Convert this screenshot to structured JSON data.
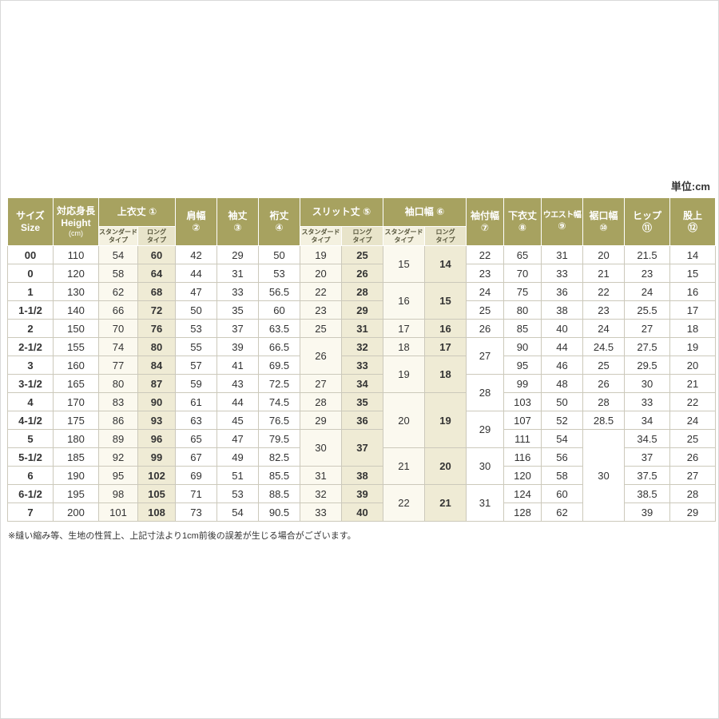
{
  "unit_label": "単位:cm",
  "footnote": "※縫い縮み等、生地の性質上、上記寸法より1cm前後の誤差が生じる場合がございます。",
  "colors": {
    "header_bg": "#a7a260",
    "header_text": "#ffffff",
    "subheader_standard_bg": "#f4f1e0",
    "subheader_long_bg": "#e8e4ca",
    "standard_col_bg": "#fbf9ef",
    "long_col_bg": "#efebd5",
    "grid_border": "#ccc9bb"
  },
  "table": {
    "subheaders": {
      "standard": [
        "スタンダード",
        "タイプ"
      ],
      "long": [
        "ロング",
        "タイプ"
      ]
    },
    "columns": [
      {
        "id": "size",
        "lines": [
          "サイズ",
          "Size"
        ]
      },
      {
        "id": "height",
        "lines": [
          "対応身長",
          "Height",
          "(cm)"
        ]
      },
      {
        "id": "jacket-length",
        "label": "上衣丈",
        "num": "①",
        "sub": true
      },
      {
        "id": "shoulder-width",
        "lines": [
          "肩幅",
          "②"
        ]
      },
      {
        "id": "sleeve-length",
        "lines": [
          "袖丈",
          "③"
        ]
      },
      {
        "id": "yuki-length",
        "lines": [
          "裄丈",
          "④"
        ]
      },
      {
        "id": "slit-length",
        "label": "スリット丈",
        "num": "⑤",
        "sub": true
      },
      {
        "id": "cuff-width",
        "label": "袖口幅",
        "num": "⑥",
        "sub": true
      },
      {
        "id": "sleeve-attach-width",
        "lines": [
          "袖付幅",
          "⑦"
        ]
      },
      {
        "id": "pants-length",
        "lines": [
          "下衣丈",
          "⑧"
        ]
      },
      {
        "id": "waist-width",
        "lines": [
          "ウエスト幅",
          "⑨"
        ],
        "tight": true
      },
      {
        "id": "hem-width",
        "lines": [
          "裾口幅",
          "⑩"
        ]
      },
      {
        "id": "hip",
        "lines": [
          "ヒップ",
          "⑪"
        ]
      },
      {
        "id": "rise",
        "lines": [
          "股上",
          "⑫"
        ]
      }
    ],
    "rows": [
      {
        "cells": [
          "00",
          "110",
          "54",
          "60",
          "42",
          "29",
          "50",
          "19",
          "25",
          {
            "v": "15",
            "rs": 2
          },
          {
            "v": "14",
            "rs": 2
          },
          "22",
          "65",
          "31",
          "20",
          "21.5",
          "14"
        ]
      },
      {
        "cells": [
          "0",
          "120",
          "58",
          "64",
          "44",
          "31",
          "53",
          "20",
          "26",
          "23",
          "70",
          "33",
          "21",
          "23",
          "15"
        ]
      },
      {
        "cells": [
          "1",
          "130",
          "62",
          "68",
          "47",
          "33",
          "56.5",
          "22",
          "28",
          {
            "v": "16",
            "rs": 2
          },
          {
            "v": "15",
            "rs": 2
          },
          "24",
          "75",
          "36",
          "22",
          "24",
          "16"
        ]
      },
      {
        "cells": [
          "1-1/2",
          "140",
          "66",
          "72",
          "50",
          "35",
          "60",
          "23",
          "29",
          "25",
          "80",
          "38",
          "23",
          "25.5",
          "17"
        ]
      },
      {
        "cells": [
          "2",
          "150",
          "70",
          "76",
          "53",
          "37",
          "63.5",
          "25",
          "31",
          "17",
          "16",
          "26",
          "85",
          "40",
          "24",
          "27",
          "18"
        ]
      },
      {
        "cells": [
          "2-1/2",
          "155",
          "74",
          "80",
          "55",
          "39",
          "66.5",
          {
            "v": "26",
            "rs": 2
          },
          "32",
          "18",
          "17",
          {
            "v": "27",
            "rs": 2
          },
          "90",
          "44",
          "24.5",
          "27.5",
          "19"
        ]
      },
      {
        "cells": [
          "3",
          "160",
          "77",
          "84",
          "57",
          "41",
          "69.5",
          "33",
          {
            "v": "19",
            "rs": 2
          },
          {
            "v": "18",
            "rs": 2
          },
          "95",
          "46",
          "25",
          "29.5",
          "20"
        ]
      },
      {
        "cells": [
          "3-1/2",
          "165",
          "80",
          "87",
          "59",
          "43",
          "72.5",
          "27",
          "34",
          {
            "v": "28",
            "rs": 2
          },
          "99",
          "48",
          "26",
          "30",
          "21"
        ]
      },
      {
        "cells": [
          "4",
          "170",
          "83",
          "90",
          "61",
          "44",
          "74.5",
          "28",
          "35",
          {
            "v": "20",
            "rs": 3
          },
          {
            "v": "19",
            "rs": 3
          },
          "103",
          "50",
          "28",
          "33",
          "22"
        ]
      },
      {
        "cells": [
          "4-1/2",
          "175",
          "86",
          "93",
          "63",
          "45",
          "76.5",
          "29",
          "36",
          {
            "v": "29",
            "rs": 2
          },
          "107",
          "52",
          "28.5",
          "34",
          "24"
        ]
      },
      {
        "cells": [
          "5",
          "180",
          "89",
          "96",
          "65",
          "47",
          "79.5",
          {
            "v": "30",
            "rs": 2
          },
          {
            "v": "37",
            "rs": 2
          },
          "111",
          "54",
          {
            "v": "30",
            "rs": 5
          },
          "34.5",
          "25"
        ]
      },
      {
        "cells": [
          "5-1/2",
          "185",
          "92",
          "99",
          "67",
          "49",
          "82.5",
          {
            "v": "21",
            "rs": 2
          },
          {
            "v": "20",
            "rs": 2
          },
          {
            "v": "30",
            "rs": 2
          },
          "116",
          "56",
          "37",
          "26"
        ]
      },
      {
        "cells": [
          "6",
          "190",
          "95",
          "102",
          "69",
          "51",
          "85.5",
          "31",
          "38",
          "120",
          "58",
          "37.5",
          "27"
        ]
      },
      {
        "cells": [
          "6-1/2",
          "195",
          "98",
          "105",
          "71",
          "53",
          "88.5",
          "32",
          "39",
          {
            "v": "22",
            "rs": 2
          },
          {
            "v": "21",
            "rs": 2
          },
          {
            "v": "31",
            "rs": 2
          },
          "124",
          "60",
          "38.5",
          "28"
        ]
      },
      {
        "cells": [
          "7",
          "200",
          "101",
          "108",
          "73",
          "54",
          "90.5",
          "33",
          "40",
          "128",
          "62",
          "39",
          "29"
        ]
      }
    ]
  }
}
